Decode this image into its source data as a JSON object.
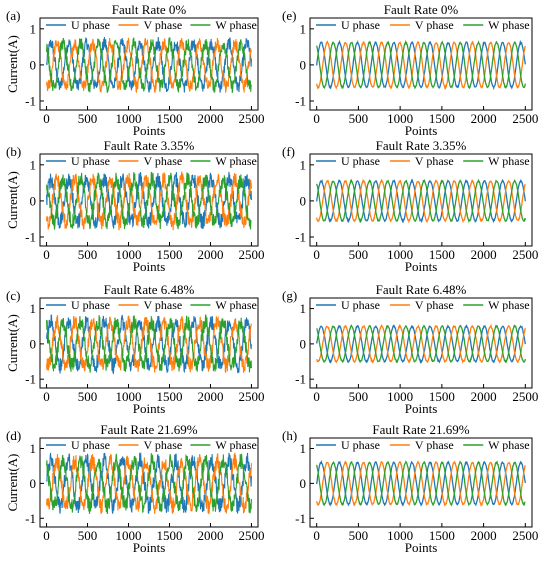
{
  "colors": {
    "U phase": "#1f77b4",
    "V phase": "#ff7f0e",
    "W phase": "#2ca02c"
  },
  "chart_data": [
    {
      "panel": "(a)",
      "type": "line",
      "title": "Fault Rate 0%",
      "xlabel": "Points",
      "ylabel": "Current(A)",
      "xlim": [
        -80,
        2580
      ],
      "ylim": [
        -1.25,
        1.3
      ],
      "xticks": [
        "0",
        "500",
        "1000",
        "1500",
        "2000",
        "2500"
      ],
      "yticks": [
        "-1",
        "0",
        "1"
      ],
      "legend": [
        "U phase",
        "V phase",
        "W phase"
      ],
      "legend_position": "top",
      "signal": {
        "amplitude": 0.6,
        "periods": 11.5,
        "noise": 0.18,
        "phase_order": [
          "U phase",
          "V phase",
          "W phase"
        ]
      }
    },
    {
      "panel": "(b)",
      "type": "line",
      "title": "Fault Rate 3.35%",
      "xlabel": "Points",
      "ylabel": "Current(A)",
      "xlim": [
        -80,
        2580
      ],
      "ylim": [
        -1.25,
        1.3
      ],
      "xticks": [
        "0",
        "500",
        "1000",
        "1500",
        "2000",
        "2500"
      ],
      "yticks": [
        "-1",
        "0",
        "1"
      ],
      "legend": [
        "U phase",
        "V phase",
        "W phase"
      ],
      "legend_position": "top",
      "signal": {
        "amplitude": 0.6,
        "periods": 11.5,
        "noise": 0.22
      }
    },
    {
      "panel": "(c)",
      "type": "line",
      "title": "Fault Rate 6.48%",
      "xlabel": "Points",
      "ylabel": "Current(A)",
      "xlim": [
        -80,
        2580
      ],
      "ylim": [
        -1.25,
        1.3
      ],
      "xticks": [
        "0",
        "500",
        "1000",
        "1500",
        "2000",
        "2500"
      ],
      "yticks": [
        "-1",
        "0",
        "1"
      ],
      "legend": [
        "U phase",
        "V phase",
        "W phase"
      ],
      "legend_position": "top",
      "signal": {
        "amplitude": 0.62,
        "periods": 11.5,
        "noise": 0.22
      }
    },
    {
      "panel": "(d)",
      "type": "line",
      "title": "Fault Rate 21.69%",
      "xlabel": "Points",
      "ylabel": "Current(A)",
      "xlim": [
        -80,
        2580
      ],
      "ylim": [
        -1.25,
        1.3
      ],
      "xticks": [
        "0",
        "500",
        "1000",
        "1500",
        "2000",
        "2500"
      ],
      "yticks": [
        "-1",
        "0",
        "1"
      ],
      "legend": [
        "U phase",
        "V phase",
        "W phase"
      ],
      "legend_position": "top",
      "signal": {
        "amplitude": 0.65,
        "periods": 11.5,
        "noise": 0.24
      }
    },
    {
      "panel": "(e)",
      "type": "line",
      "title": "Fault Rate 0%",
      "xlabel": "Points",
      "ylabel": "",
      "xlim": [
        -80,
        2580
      ],
      "ylim": [
        -1.25,
        1.3
      ],
      "xticks": [
        "0",
        "500",
        "1000",
        "1500",
        "2000",
        "2500"
      ],
      "yticks": [
        "-1",
        "0",
        "1"
      ],
      "legend": [
        "U phase",
        "V phase",
        "W phase"
      ],
      "legend_position": "top",
      "signal": {
        "amplitude": 0.62,
        "periods": 11.5,
        "noise": 0.02
      }
    },
    {
      "panel": "(f)",
      "type": "line",
      "title": "Fault Rate 3.35%",
      "xlabel": "Points",
      "ylabel": "",
      "xlim": [
        -80,
        2580
      ],
      "ylim": [
        -1.25,
        1.3
      ],
      "xticks": [
        "0",
        "500",
        "1000",
        "1500",
        "2000",
        "2500"
      ],
      "yticks": [
        "-1",
        "0",
        "1"
      ],
      "legend": [
        "U phase",
        "V phase",
        "W phase"
      ],
      "legend_position": "top",
      "signal": {
        "amplitude": 0.55,
        "periods": 11.5,
        "noise": 0.02
      }
    },
    {
      "panel": "(g)",
      "type": "line",
      "title": "Fault Rate 6.48%",
      "xlabel": "Points",
      "ylabel": "",
      "xlim": [
        -80,
        2580
      ],
      "ylim": [
        -1.25,
        1.3
      ],
      "xticks": [
        "0",
        "500",
        "1000",
        "1500",
        "2000",
        "2500"
      ],
      "yticks": [
        "-1",
        "0",
        "1"
      ],
      "legend": [
        "U phase",
        "V phase",
        "W phase"
      ],
      "legend_position": "top",
      "signal": {
        "amplitude": 0.5,
        "periods": 11.5,
        "noise": 0.02
      }
    },
    {
      "panel": "(h)",
      "type": "line",
      "title": "Fault Rate 21.69%",
      "xlabel": "Points",
      "ylabel": "",
      "xlim": [
        -80,
        2580
      ],
      "ylim": [
        -1.25,
        1.3
      ],
      "xticks": [
        "0",
        "500",
        "1000",
        "1500",
        "2000",
        "2500"
      ],
      "yticks": [
        "-1",
        "0",
        "1"
      ],
      "legend": [
        "U phase",
        "V phase",
        "W phase"
      ],
      "legend_position": "top",
      "signal": {
        "amplitude": 0.6,
        "periods": 11.5,
        "noise": 0.02
      }
    }
  ]
}
